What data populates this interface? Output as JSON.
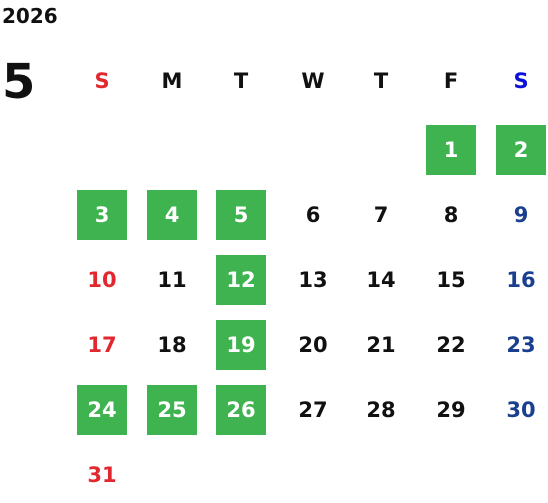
{
  "year": "2026",
  "month": "5",
  "weekdays": [
    "S",
    "M",
    "T",
    "W",
    "T",
    "F",
    "S"
  ],
  "colors": {
    "highlight": "#3fb34f",
    "sunday": "#e0282e",
    "saturday_header": "#0a10d8",
    "saturday_day": "#1b3f8f",
    "text": "#111111"
  },
  "weeks": [
    [
      null,
      null,
      null,
      null,
      null,
      {
        "day": "1",
        "hl": true
      },
      {
        "day": "2",
        "hl": true
      }
    ],
    [
      {
        "day": "3",
        "hl": true
      },
      {
        "day": "4",
        "hl": true
      },
      {
        "day": "5",
        "hl": true
      },
      {
        "day": "6"
      },
      {
        "day": "7"
      },
      {
        "day": "8"
      },
      {
        "day": "9"
      }
    ],
    [
      {
        "day": "10"
      },
      {
        "day": "11"
      },
      {
        "day": "12",
        "hl": true
      },
      {
        "day": "13"
      },
      {
        "day": "14"
      },
      {
        "day": "15"
      },
      {
        "day": "16"
      }
    ],
    [
      {
        "day": "17"
      },
      {
        "day": "18"
      },
      {
        "day": "19",
        "hl": true
      },
      {
        "day": "20"
      },
      {
        "day": "21"
      },
      {
        "day": "22"
      },
      {
        "day": "23"
      }
    ],
    [
      {
        "day": "24",
        "hl": true
      },
      {
        "day": "25",
        "hl": true
      },
      {
        "day": "26",
        "hl": true
      },
      {
        "day": "27"
      },
      {
        "day": "28"
      },
      {
        "day": "29"
      },
      {
        "day": "30"
      }
    ],
    [
      {
        "day": "31"
      },
      null,
      null,
      null,
      null,
      null,
      null
    ]
  ]
}
